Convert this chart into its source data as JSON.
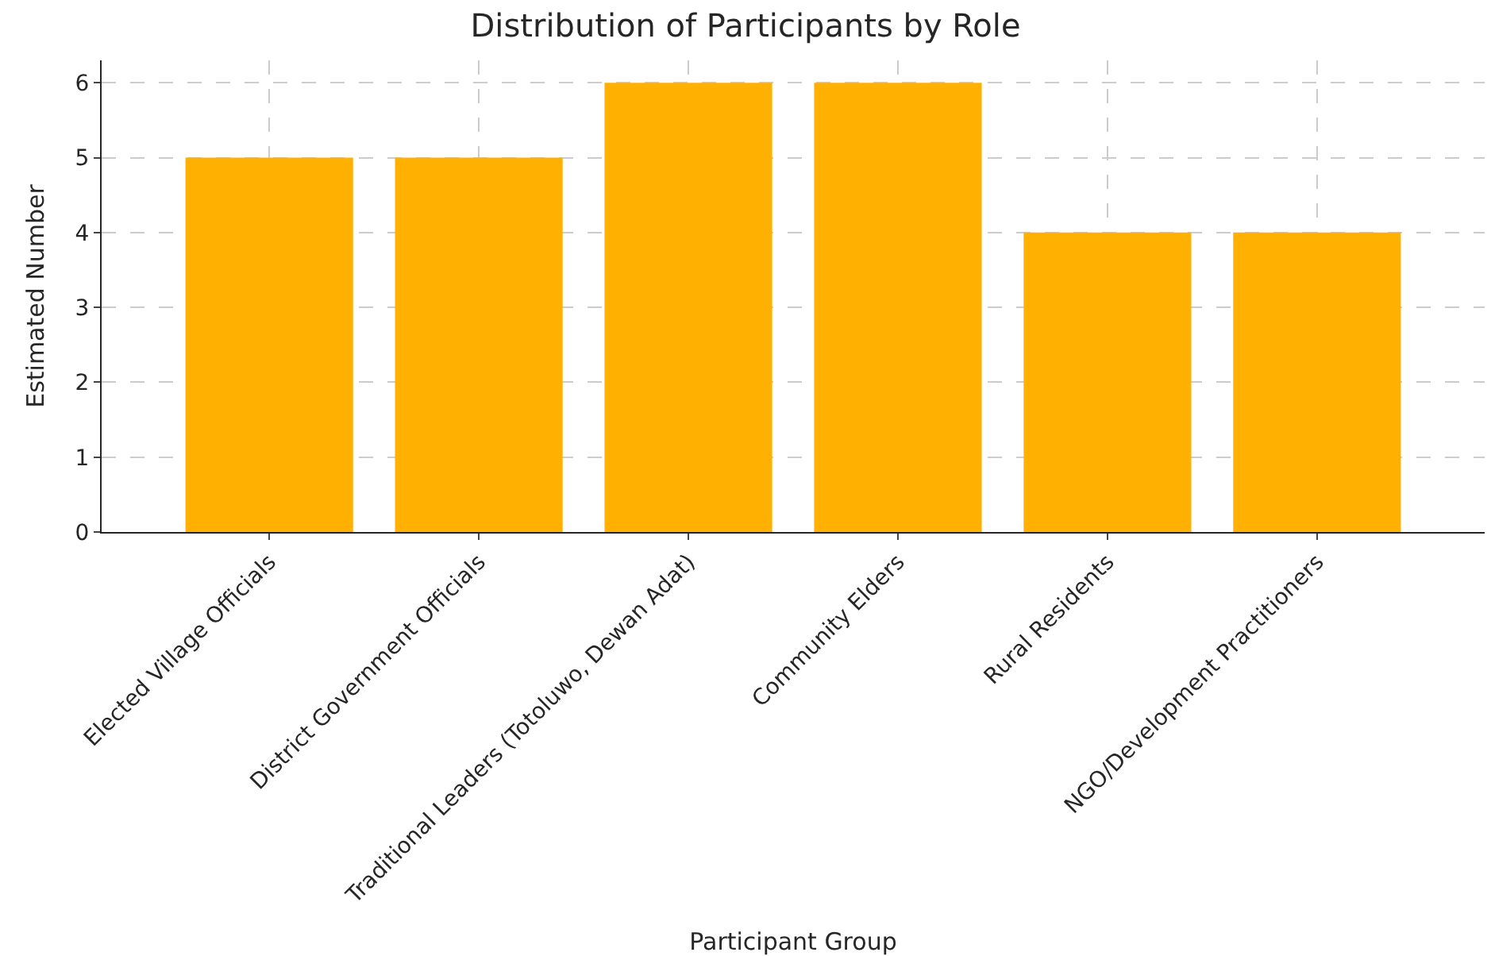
{
  "chart_data": {
    "type": "bar",
    "title": "Distribution of Participants by Role",
    "xlabel": "Participant Group",
    "ylabel": "Estimated Number",
    "categories": [
      "Elected Village Officials",
      "District Government Officials",
      "Traditional Leaders (Totoluwo, Dewan Adat)",
      "Community Elders",
      "Rural Residents",
      "NGO/Development Practitioners"
    ],
    "values": [
      5,
      5,
      6,
      6,
      4,
      4
    ],
    "color": "#ffb000",
    "ylim": [
      0,
      6.3
    ],
    "yticks": [
      0,
      1,
      2,
      3,
      4,
      5,
      6
    ],
    "grid": true
  }
}
